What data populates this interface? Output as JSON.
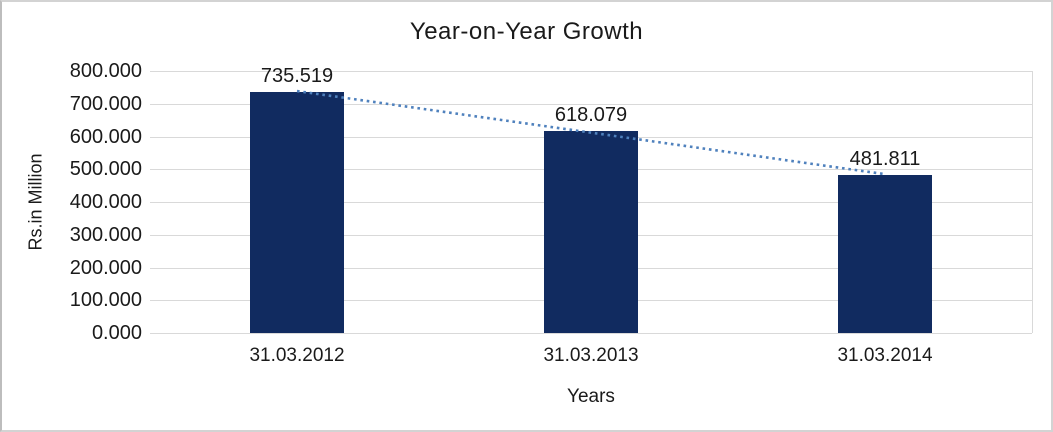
{
  "chart_data": {
    "type": "bar",
    "title": "Year-on-Year Growth",
    "categories": [
      "31.03.2012",
      "31.03.2013",
      "31.03.2014"
    ],
    "values": [
      735.519,
      618.079,
      481.811
    ],
    "data_labels": [
      "735.519",
      "618.079",
      "481.811"
    ],
    "xlabel": "Years",
    "ylabel": "Rs.in Million",
    "ylim": [
      0,
      800
    ],
    "ytick_step": 100,
    "ytick_labels": [
      "0.000",
      "100.000",
      "200.000",
      "300.000",
      "400.000",
      "500.000",
      "600.000",
      "700.000",
      "800.000"
    ],
    "grid": true,
    "legend": "none",
    "trendline_info": {
      "type": "linear",
      "style": "dotted"
    },
    "colors": {
      "bar": "#112b60",
      "trendline": "#4f81bd",
      "gridline": "#d9d9d9",
      "axis_line": "#d9d9d9",
      "text": "#1a1a1a",
      "background": "#ffffff",
      "chart_border": "#d3d3d3"
    }
  }
}
